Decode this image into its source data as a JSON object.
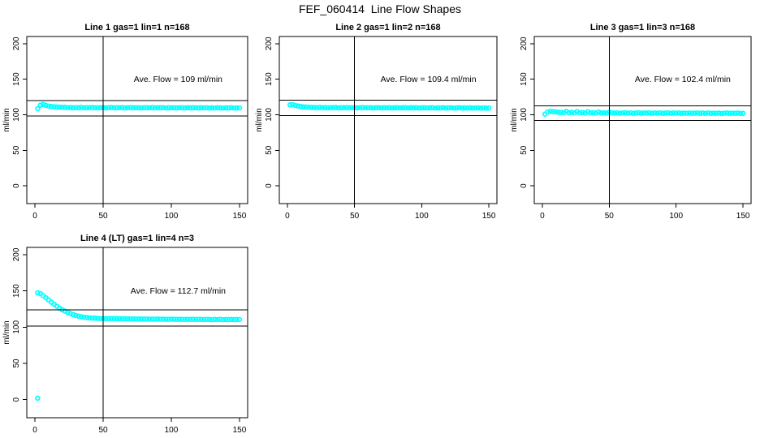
{
  "figure_title": "FEF_060414  Line Flow Shapes",
  "colors": {
    "data_points": "#00ffff",
    "axis": "#000000",
    "background": "#ffffff",
    "text": "#000000"
  },
  "chart_data": [
    {
      "type": "scatter",
      "title": "Line 1 gas=1 lin=1 n=168",
      "annotation": "Ave. Flow =  109  ml/min",
      "ave_flow_ml_min": 109,
      "n": 168,
      "ylabel": "ml/min",
      "xlim": [
        -6,
        156
      ],
      "ylim": [
        -25,
        210
      ],
      "xticks": [
        0,
        50,
        100,
        150
      ],
      "yticks": [
        0,
        50,
        100,
        150,
        200
      ],
      "grid": false,
      "legend": false,
      "vline_x": 50,
      "hlines_y": [
        98.1,
        119.9
      ],
      "annotation_pos": [
        105,
        150
      ],
      "series": {
        "name": "flow",
        "marker": "open-circle",
        "x_start": 2,
        "x_step": 2,
        "y": [
          108.5,
          113.5,
          114.5,
          113.2,
          112.2,
          111.6,
          111.2,
          110.9,
          110.7,
          110.5,
          110.4,
          109.9,
          110.2,
          109.7,
          110.1,
          109.8,
          110.3,
          109.6,
          110.0,
          109.9,
          110.2,
          109.7,
          110.0,
          109.8,
          110.1,
          109.6,
          109.9,
          110.2,
          109.7,
          110.0,
          109.8,
          110.1,
          109.5,
          109.9,
          110.1,
          109.7,
          110.0,
          109.8,
          109.6,
          110.0,
          109.9,
          109.7,
          110.1,
          109.6,
          109.9,
          109.8,
          110.0,
          109.5,
          109.9,
          109.7,
          110.0,
          109.6,
          109.8,
          109.9,
          109.5,
          109.8,
          109.6,
          109.9,
          109.7,
          109.5,
          109.8,
          109.6,
          109.9,
          109.4,
          109.7,
          109.5,
          109.8,
          109.6,
          109.4,
          109.7,
          109.5,
          109.8,
          109.4,
          109.6,
          109.5
        ]
      },
      "extra_points": []
    },
    {
      "type": "scatter",
      "title": "Line 2 gas=1 lin=2 n=168",
      "annotation": "Ave. Flow =  109.4  ml/min",
      "ave_flow_ml_min": 109.4,
      "n": 168,
      "ylabel": "ml/min",
      "xlim": [
        -6,
        156
      ],
      "ylim": [
        -25,
        210
      ],
      "xticks": [
        0,
        50,
        100,
        150
      ],
      "yticks": [
        0,
        50,
        100,
        150,
        200
      ],
      "grid": false,
      "legend": false,
      "vline_x": 50,
      "hlines_y": [
        98.5,
        120.3
      ],
      "annotation_pos": [
        105,
        150
      ],
      "series": {
        "name": "flow",
        "marker": "open-circle",
        "x_start": 2,
        "x_step": 2,
        "y": [
          113.8,
          114.2,
          113.0,
          112.1,
          111.5,
          111.0,
          110.7,
          110.5,
          110.3,
          110.2,
          110.0,
          110.3,
          109.8,
          110.1,
          109.7,
          110.0,
          109.9,
          110.2,
          109.6,
          110.0,
          109.8,
          110.1,
          109.7,
          109.9,
          110.0,
          109.6,
          109.9,
          110.1,
          109.7,
          110.0,
          109.8,
          109.5,
          109.9,
          110.0,
          109.6,
          109.9,
          109.7,
          110.0,
          109.5,
          109.8,
          109.9,
          109.6,
          109.8,
          110.0,
          109.5,
          109.8,
          109.6,
          109.9,
          109.4,
          109.7,
          109.8,
          109.5,
          109.7,
          109.9,
          109.4,
          109.7,
          109.5,
          109.8,
          109.4,
          109.6,
          109.7,
          109.4,
          109.6,
          109.8,
          109.3,
          109.6,
          109.4,
          109.7,
          109.3,
          109.5,
          109.6,
          109.3,
          109.5,
          109.2,
          109.4
        ]
      },
      "extra_points": []
    },
    {
      "type": "scatter",
      "title": "Line 3 gas=1 lin=3 n=168",
      "annotation": "Ave. Flow =  102.4  ml/min",
      "ave_flow_ml_min": 102.4,
      "n": 168,
      "ylabel": "ml/min",
      "xlim": [
        -6,
        156
      ],
      "ylim": [
        -25,
        210
      ],
      "xticks": [
        0,
        50,
        100,
        150
      ],
      "yticks": [
        0,
        50,
        100,
        150,
        200
      ],
      "grid": false,
      "legend": false,
      "vline_x": 50,
      "hlines_y": [
        92.2,
        112.6
      ],
      "annotation_pos": [
        105,
        150
      ],
      "series": {
        "name": "flow",
        "marker": "open-circle",
        "x_start": 2,
        "x_step": 2,
        "y": [
          100.8,
          103.8,
          104.8,
          104.4,
          103.9,
          103.5,
          103.2,
          103.0,
          104.6,
          102.7,
          103.3,
          102.5,
          104.4,
          102.8,
          103.1,
          102.4,
          104.2,
          102.6,
          102.9,
          102.3,
          103.8,
          102.5,
          102.8,
          102.2,
          103.4,
          102.6,
          102.3,
          102.7,
          102.1,
          102.5,
          102.8,
          102.2,
          102.6,
          102.0,
          102.4,
          102.7,
          102.1,
          102.5,
          102.3,
          102.6,
          102.0,
          102.4,
          102.2,
          102.5,
          101.9,
          102.3,
          102.6,
          102.0,
          102.4,
          102.1,
          102.5,
          101.9,
          102.3,
          102.1,
          102.4,
          101.8,
          102.2,
          102.5,
          101.9,
          102.3,
          102.0,
          102.4,
          101.8,
          102.2,
          102.0,
          102.3,
          101.7,
          102.1,
          102.4,
          101.8,
          102.2,
          101.9,
          102.3,
          101.7,
          102.0
        ]
      },
      "extra_points": []
    },
    {
      "type": "scatter",
      "title": "Line 4 (LT) gas=1 lin=4 n=3",
      "annotation": "Ave. Flow =  112.7  ml/min",
      "ave_flow_ml_min": 112.7,
      "n": 3,
      "ylabel": "ml/min",
      "xlim": [
        -6,
        156
      ],
      "ylim": [
        -25,
        210
      ],
      "xticks": [
        0,
        50,
        100,
        150
      ],
      "yticks": [
        0,
        50,
        100,
        150,
        200
      ],
      "grid": false,
      "legend": false,
      "vline_x": 50,
      "hlines_y": [
        101.4,
        124.0
      ],
      "annotation_pos": [
        105,
        150
      ],
      "series": {
        "name": "flow",
        "marker": "open-circle",
        "x_start": 2,
        "x_step": 2,
        "y": [
          147.5,
          146.2,
          143.5,
          140.5,
          137.5,
          134.5,
          131.5,
          128.8,
          126.3,
          124.0,
          122.0,
          120.3,
          118.7,
          117.3,
          116.1,
          115.1,
          114.3,
          113.7,
          113.2,
          112.8,
          112.5,
          112.3,
          112.1,
          112.0,
          111.9,
          111.8,
          111.8,
          111.7,
          111.7,
          111.6,
          111.6,
          111.5,
          111.5,
          111.4,
          111.4,
          111.3,
          111.3,
          111.2,
          111.2,
          111.1,
          111.1,
          111.0,
          111.0,
          110.9,
          111.1,
          110.8,
          111.0,
          110.9,
          110.7,
          111.0,
          110.8,
          110.6,
          110.9,
          110.7,
          110.5,
          110.8,
          110.6,
          110.9,
          110.5,
          110.7,
          110.6,
          110.4,
          110.7,
          110.5,
          110.3,
          110.6,
          110.4,
          110.7,
          110.3,
          110.5,
          110.4,
          110.6,
          110.3,
          110.5,
          110.4
        ]
      },
      "extra_points": [
        [
          2,
          2
        ]
      ]
    }
  ]
}
